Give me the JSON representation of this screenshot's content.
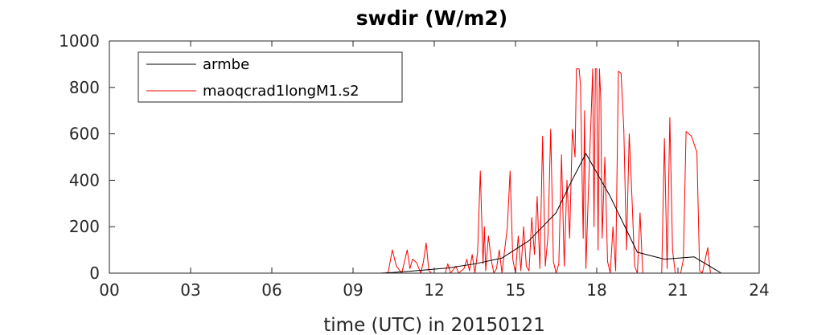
{
  "chart_data": {
    "type": "line",
    "title": "swdir  (W/m2)",
    "xlabel": "time (UTC) in 20150121",
    "ylabel": "",
    "xlim": [
      0,
      24
    ],
    "ylim": [
      0,
      1000
    ],
    "xticks": [
      0,
      3,
      6,
      9,
      12,
      15,
      18,
      21,
      24
    ],
    "xtick_labels": [
      "00",
      "03",
      "06",
      "09",
      "12",
      "15",
      "18",
      "21",
      "24"
    ],
    "yticks": [
      0,
      200,
      400,
      600,
      800,
      1000
    ],
    "ytick_labels": [
      "0",
      "200",
      "400",
      "600",
      "800",
      "1000"
    ],
    "legend": {
      "position": "top-left",
      "entries": [
        "armbe",
        "maoqcrad1longM1.s2"
      ]
    },
    "series": [
      {
        "name": "armbe",
        "color": "#000000",
        "points": [
          [
            0,
            0
          ],
          [
            10,
            0
          ],
          [
            10.5,
            3
          ],
          [
            11.5,
            12
          ],
          [
            12.5,
            22
          ],
          [
            13.5,
            40
          ],
          [
            14.5,
            65
          ],
          [
            15.5,
            140
          ],
          [
            16.5,
            260
          ],
          [
            17,
            380
          ],
          [
            17.6,
            515
          ],
          [
            18.5,
            330
          ],
          [
            19.5,
            90
          ],
          [
            20.5,
            60
          ],
          [
            21.6,
            70
          ],
          [
            22.6,
            0
          ],
          [
            24,
            0
          ]
        ]
      },
      {
        "name": "maoqcrad1longM1.s2",
        "color": "#ff0000",
        "points": [
          [
            0,
            0
          ],
          [
            10.2,
            0
          ],
          [
            10.3,
            5
          ],
          [
            10.45,
            100
          ],
          [
            10.6,
            30
          ],
          [
            10.8,
            0
          ],
          [
            10.9,
            50
          ],
          [
            11,
            100
          ],
          [
            11.1,
            20
          ],
          [
            11.2,
            60
          ],
          [
            11.35,
            45
          ],
          [
            11.5,
            0
          ],
          [
            11.6,
            50
          ],
          [
            11.7,
            130
          ],
          [
            11.8,
            10
          ],
          [
            11.9,
            0
          ],
          [
            12.4,
            0
          ],
          [
            12.5,
            40
          ],
          [
            12.6,
            0
          ],
          [
            12.8,
            30
          ],
          [
            12.9,
            0
          ],
          [
            13.1,
            20
          ],
          [
            13.2,
            60
          ],
          [
            13.3,
            10
          ],
          [
            13.4,
            80
          ],
          [
            13.5,
            0
          ],
          [
            13.6,
            90
          ],
          [
            13.7,
            440
          ],
          [
            13.8,
            40
          ],
          [
            13.85,
            200
          ],
          [
            13.9,
            10
          ],
          [
            14,
            160
          ],
          [
            14.1,
            60
          ],
          [
            14.2,
            0
          ],
          [
            14.3,
            20
          ],
          [
            14.4,
            100
          ],
          [
            14.5,
            0
          ],
          [
            14.7,
            200
          ],
          [
            14.8,
            440
          ],
          [
            14.9,
            60
          ],
          [
            15,
            0
          ],
          [
            15.1,
            160
          ],
          [
            15.2,
            10
          ],
          [
            15.3,
            200
          ],
          [
            15.4,
            30
          ],
          [
            15.5,
            10
          ],
          [
            15.6,
            240
          ],
          [
            15.7,
            80
          ],
          [
            15.8,
            330
          ],
          [
            15.9,
            20
          ],
          [
            16,
            590
          ],
          [
            16.1,
            30
          ],
          [
            16.2,
            160
          ],
          [
            16.3,
            620
          ],
          [
            16.4,
            50
          ],
          [
            16.5,
            0
          ],
          [
            16.6,
            40
          ],
          [
            16.7,
            510
          ],
          [
            16.8,
            30
          ],
          [
            16.9,
            400
          ],
          [
            17,
            150
          ],
          [
            17.1,
            620
          ],
          [
            17.2,
            500
          ],
          [
            17.25,
            880
          ],
          [
            17.35,
            880
          ],
          [
            17.4,
            810
          ],
          [
            17.5,
            150
          ],
          [
            17.55,
            700
          ],
          [
            17.6,
            20
          ],
          [
            17.7,
            380
          ],
          [
            17.8,
            700
          ],
          [
            17.85,
            880
          ],
          [
            17.9,
            200
          ],
          [
            17.95,
            880
          ],
          [
            18,
            880
          ],
          [
            18.05,
            100
          ],
          [
            18.1,
            880
          ],
          [
            18.15,
            750
          ],
          [
            18.2,
            150
          ],
          [
            18.3,
            500
          ],
          [
            18.4,
            50
          ],
          [
            18.5,
            0
          ],
          [
            18.6,
            200
          ],
          [
            18.7,
            10
          ],
          [
            18.8,
            870
          ],
          [
            18.9,
            860
          ],
          [
            19,
            620
          ],
          [
            19.1,
            100
          ],
          [
            19.2,
            600
          ],
          [
            19.3,
            330
          ],
          [
            19.4,
            30
          ],
          [
            19.5,
            0
          ],
          [
            19.6,
            260
          ],
          [
            19.7,
            0
          ],
          [
            20.4,
            0
          ],
          [
            20.5,
            580
          ],
          [
            20.6,
            20
          ],
          [
            20.7,
            670
          ],
          [
            20.8,
            100
          ],
          [
            20.9,
            0
          ],
          [
            21.1,
            0
          ],
          [
            21.2,
            60
          ],
          [
            21.3,
            610
          ],
          [
            21.5,
            590
          ],
          [
            21.7,
            520
          ],
          [
            21.8,
            10
          ],
          [
            21.9,
            0
          ],
          [
            22.1,
            110
          ],
          [
            22.2,
            0
          ],
          [
            24,
            0
          ]
        ]
      }
    ]
  }
}
